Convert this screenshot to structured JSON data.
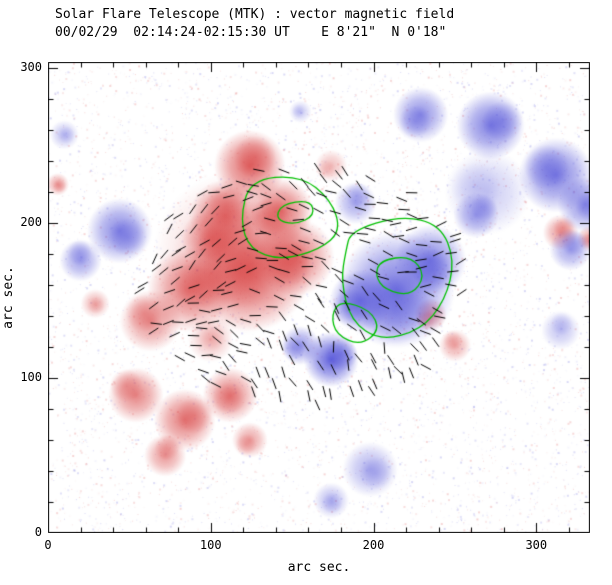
{
  "chart_data": {
    "type": "heatmap",
    "title": "Solar Flare Telescope (MTK) : vector magnetic field",
    "subtitle": "00/02/29  02:14:24-02:15:30 UT    E 8'21\"  N 0'18\"",
    "xlabel": "arc sec.",
    "ylabel": "arc sec.",
    "xlim": [
      0,
      333
    ],
    "ylim": [
      0,
      304
    ],
    "xticks": [
      0,
      100,
      200,
      300
    ],
    "yticks": [
      0,
      100,
      200,
      300
    ],
    "minor_tick_step": 20,
    "colors": {
      "positive": "#d84040",
      "negative": "#5050d8",
      "contour": "#00c000",
      "vector": "#000000",
      "frame": "#000000",
      "background": "#ffffff"
    },
    "blobs": [
      {
        "x": 124,
        "y": 237,
        "r": 22,
        "pol": 1,
        "a": 0.8
      },
      {
        "x": 109,
        "y": 205,
        "r": 22,
        "pol": 1,
        "a": 0.7
      },
      {
        "x": 143,
        "y": 208,
        "r": 20,
        "pol": 1,
        "a": 0.75
      },
      {
        "x": 124,
        "y": 170,
        "r": 38,
        "pol": 1,
        "a": 0.75
      },
      {
        "x": 152,
        "y": 178,
        "r": 24,
        "pol": 1,
        "a": 0.7
      },
      {
        "x": 87,
        "y": 157,
        "r": 26,
        "pol": 1,
        "a": 0.7
      },
      {
        "x": 63,
        "y": 137,
        "r": 19,
        "pol": 1,
        "a": 0.6
      },
      {
        "x": 100,
        "y": 190,
        "r": 18,
        "pol": 1,
        "a": 0.55
      },
      {
        "x": 115,
        "y": 180,
        "r": 50,
        "pol": 1,
        "a": 0.3
      },
      {
        "x": 6,
        "y": 225,
        "r": 7,
        "pol": 1,
        "a": 0.5
      },
      {
        "x": 29,
        "y": 148,
        "r": 9,
        "pol": 1,
        "a": 0.4
      },
      {
        "x": 100,
        "y": 125,
        "r": 14,
        "pol": 1,
        "a": 0.35
      },
      {
        "x": 54,
        "y": 89,
        "r": 17,
        "pol": 1,
        "a": 0.65
      },
      {
        "x": 84,
        "y": 73,
        "r": 19,
        "pol": 1,
        "a": 0.7
      },
      {
        "x": 112,
        "y": 89,
        "r": 17,
        "pol": 1,
        "a": 0.65
      },
      {
        "x": 72,
        "y": 50,
        "r": 13,
        "pol": 1,
        "a": 0.55
      },
      {
        "x": 124,
        "y": 60,
        "r": 11,
        "pol": 1,
        "a": 0.5
      },
      {
        "x": 235,
        "y": 141,
        "r": 10,
        "pol": 1,
        "a": 0.55
      },
      {
        "x": 250,
        "y": 121,
        "r": 10,
        "pol": 1,
        "a": 0.45
      },
      {
        "x": 315,
        "y": 194,
        "r": 11,
        "pol": 1,
        "a": 0.55
      },
      {
        "x": 333,
        "y": 190,
        "r": 8,
        "pol": 1,
        "a": 0.5
      },
      {
        "x": 174,
        "y": 237,
        "r": 10,
        "pol": 1,
        "a": 0.35
      },
      {
        "x": 229,
        "y": 270,
        "r": 17,
        "pol": -1,
        "a": 0.65
      },
      {
        "x": 272,
        "y": 263,
        "r": 21,
        "pol": -1,
        "a": 0.75
      },
      {
        "x": 312,
        "y": 231,
        "r": 23,
        "pol": -1,
        "a": 0.75
      },
      {
        "x": 330,
        "y": 212,
        "r": 17,
        "pol": -1,
        "a": 0.65
      },
      {
        "x": 321,
        "y": 183,
        "r": 13,
        "pol": -1,
        "a": 0.55
      },
      {
        "x": 214,
        "y": 157,
        "r": 36,
        "pol": -1,
        "a": 0.8
      },
      {
        "x": 235,
        "y": 176,
        "r": 22,
        "pol": -1,
        "a": 0.7
      },
      {
        "x": 192,
        "y": 150,
        "r": 19,
        "pol": -1,
        "a": 0.75
      },
      {
        "x": 174,
        "y": 112,
        "r": 17,
        "pol": -1,
        "a": 0.9
      },
      {
        "x": 155,
        "y": 121,
        "r": 12,
        "pol": -1,
        "a": 0.6
      },
      {
        "x": 270,
        "y": 220,
        "r": 26,
        "pol": -1,
        "a": 0.3
      },
      {
        "x": 198,
        "y": 41,
        "r": 17,
        "pol": -1,
        "a": 0.45
      },
      {
        "x": 174,
        "y": 21,
        "r": 11,
        "pol": -1,
        "a": 0.4
      },
      {
        "x": 44,
        "y": 195,
        "r": 20,
        "pol": -1,
        "a": 0.7
      },
      {
        "x": 20,
        "y": 176,
        "r": 13,
        "pol": -1,
        "a": 0.55
      },
      {
        "x": 10,
        "y": 257,
        "r": 9,
        "pol": -1,
        "a": 0.35
      },
      {
        "x": 189,
        "y": 213,
        "r": 13,
        "pol": -1,
        "a": 0.5
      },
      {
        "x": 263,
        "y": 205,
        "r": 14,
        "pol": -1,
        "a": 0.55
      },
      {
        "x": 315,
        "y": 131,
        "r": 12,
        "pol": -1,
        "a": 0.35
      },
      {
        "x": 155,
        "y": 272,
        "r": 7,
        "pol": -1,
        "a": 0.3
      }
    ],
    "contours": [
      [
        [
          124,
          228
        ],
        [
          155,
          231
        ],
        [
          174,
          215
        ],
        [
          180,
          195
        ],
        [
          167,
          183
        ],
        [
          143,
          176
        ],
        [
          124,
          183
        ],
        [
          118,
          202
        ]
      ],
      [
        [
          186,
          195
        ],
        [
          217,
          205
        ],
        [
          241,
          199
        ],
        [
          250,
          176
        ],
        [
          244,
          150
        ],
        [
          229,
          131
        ],
        [
          204,
          124
        ],
        [
          186,
          137
        ],
        [
          180,
          163
        ],
        [
          183,
          182
        ]
      ],
      [
        [
          204,
          176
        ],
        [
          223,
          179
        ],
        [
          232,
          166
        ],
        [
          223,
          153
        ],
        [
          207,
          157
        ],
        [
          201,
          166
        ]
      ],
      [
        [
          180,
          150
        ],
        [
          198,
          144
        ],
        [
          204,
          131
        ],
        [
          192,
          121
        ],
        [
          177,
          128
        ],
        [
          174,
          141
        ]
      ],
      [
        [
          143,
          212
        ],
        [
          161,
          215
        ],
        [
          164,
          205
        ],
        [
          152,
          199
        ],
        [
          140,
          202
        ]
      ]
    ],
    "vector_field": {
      "cx": 158,
      "cy": 160,
      "rx": 102,
      "ry": 78,
      "spacing": 8,
      "jitter": 3,
      "seg_len": 7,
      "skip": 0.3,
      "seed": 9
    },
    "noise": {
      "count": 6000,
      "max_alpha": 0.18,
      "seed": 5
    }
  }
}
